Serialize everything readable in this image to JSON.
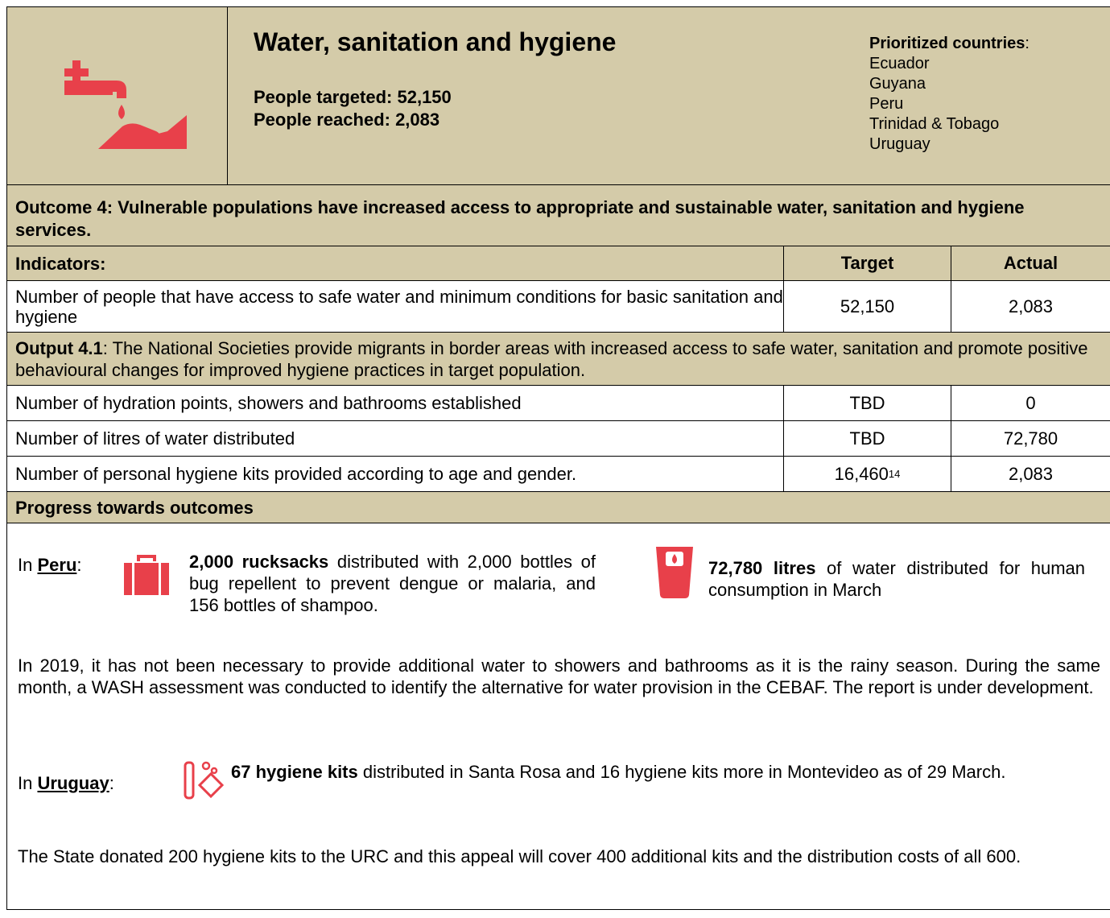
{
  "header": {
    "title": "Water, sanitation and hygiene",
    "targeted": "People targeted: 52,150",
    "reached": "People reached: 2,083",
    "prioritized_label": "Prioritized countries",
    "prioritized_colon": ":",
    "countries": [
      "Ecuador",
      "Guyana",
      "Peru",
      "Trinidad & Tobago",
      "Uruguay"
    ]
  },
  "outcome": "Outcome 4: Vulnerable populations have increased access to appropriate and sustainable water, sanitation and hygiene services.",
  "table": {
    "header": [
      "Indicators:",
      "Target",
      "Actual"
    ],
    "outcome_row": [
      "Number of people that have access to safe water and minimum conditions for basic sanitation and hygiene",
      "52,150",
      "2,083"
    ],
    "output_label": "Output 4.1",
    "output_text": ": The National Societies provide migrants in border areas with increased access to safe water, sanitation and promote positive behavioural changes for improved hygiene practices in target population.",
    "rows": [
      [
        "Number of hydration points, showers and bathrooms established",
        "TBD",
        "0"
      ],
      [
        "Number of litres of water distributed",
        "TBD",
        "72,780"
      ],
      [
        "Number of personal hygiene kits provided according to age and gender.",
        "16,460",
        "2,083"
      ]
    ],
    "footnote": "14"
  },
  "progress": {
    "title": "Progress towards outcomes",
    "peru": {
      "prefix": "In ",
      "country": "Peru",
      "colon": ":",
      "item1_bold": "2,000 rucksacks",
      "item1_text": " distributed with 2,000 bottles of bug repellent to prevent dengue or malaria, and 156 bottles of shampoo.",
      "item2_bold": "72,780 litres",
      "item2_text": " of water distributed for human consumption in March",
      "paragraph": "In 2019, it has not been necessary to provide additional water to showers and bathrooms as it is the rainy season. During the same month, a WASH assessment was conducted to identify the alternative for water provision in the CEBAF. The report is under development."
    },
    "uruguay": {
      "prefix": "In ",
      "country": "Uruguay",
      "colon": ":",
      "item_bold": "67 hygiene kits",
      "item_text": " distributed in Santa Rosa and 16 hygiene kits more in Montevideo as of 29 March.",
      "paragraph": "The State donated 200 hygiene kits to the URC and this appeal will cover 400 additional kits and the distribution costs of all 600."
    }
  }
}
